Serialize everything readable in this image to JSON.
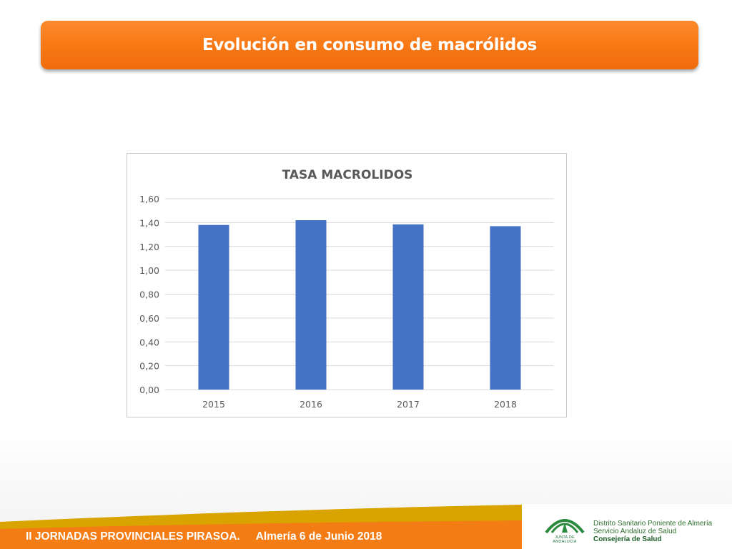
{
  "header": {
    "title": "Evolución en consumo de macrólidos"
  },
  "chart_data": {
    "type": "bar",
    "title": "TASA MACROLIDOS",
    "categories": [
      "2015",
      "2016",
      "2017",
      "2018"
    ],
    "values": [
      1.38,
      1.42,
      1.385,
      1.37
    ],
    "ylim": [
      0,
      1.6
    ],
    "yticks": [
      "0,00",
      "0,20",
      "0,40",
      "0,60",
      "0,80",
      "1,00",
      "1,20",
      "1,40",
      "1,60"
    ],
    "xlabel": "",
    "ylabel": "",
    "grid": true,
    "legend": "none",
    "bar_color": "#4472c4",
    "grid_color": "#d9d9d9",
    "tick_color": "#595959"
  },
  "footer": {
    "event": "II JORNADAS PROVINCIALES PIRASOA.",
    "date": "Almería 6 de Junio 2018",
    "band_colors": {
      "gold": "#d9a300",
      "orange": "#f47c14"
    }
  },
  "logo": {
    "caption": "JUNTA DE ANDALUCIA",
    "lines": [
      "Distrito Sanitario Poniente de Almería",
      "Servicio Andaluz de Salud",
      "Consejería de Salud"
    ]
  }
}
